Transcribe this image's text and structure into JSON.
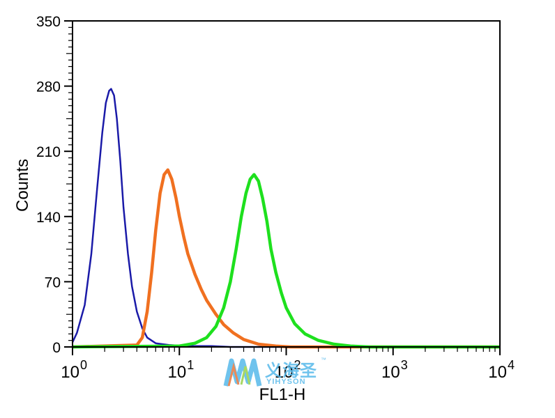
{
  "chart_data": {
    "type": "line",
    "title": "",
    "xlabel": "FL1-H",
    "ylabel": "Counts",
    "x_scale": "log",
    "xlim": [
      1,
      10000
    ],
    "ylim": [
      0,
      350
    ],
    "grid": false,
    "x_ticks": [
      {
        "base": "10",
        "exp": "0"
      },
      {
        "base": "10",
        "exp": "1"
      },
      {
        "base": "10",
        "exp": "2"
      },
      {
        "base": "10",
        "exp": "3"
      },
      {
        "base": "10",
        "exp": "4"
      }
    ],
    "y_ticks": [
      0,
      70,
      140,
      210,
      280,
      350
    ],
    "series": [
      {
        "color": "#1a1aa8",
        "x": [
          1,
          1.1,
          1.3,
          1.5,
          1.7,
          1.9,
          2.05,
          2.2,
          2.3,
          2.45,
          2.6,
          2.8,
          3.0,
          3.3,
          3.6,
          4.0,
          4.5,
          5.0,
          6.0,
          8.0,
          12,
          20,
          30,
          40,
          60,
          100,
          10000
        ],
        "y": [
          5,
          15,
          45,
          100,
          170,
          230,
          262,
          275,
          277,
          270,
          245,
          200,
          150,
          100,
          65,
          38,
          20,
          10,
          4,
          2,
          1,
          1,
          0,
          0,
          0,
          0,
          0
        ]
      },
      {
        "color": "#f07020",
        "x": [
          1,
          4,
          4.5,
          5.0,
          5.5,
          6.0,
          6.6,
          7.2,
          7.8,
          8.5,
          9.3,
          10,
          11,
          12,
          14,
          16,
          18,
          22,
          26,
          32,
          40,
          55,
          80,
          110,
          10000
        ],
        "y": [
          0,
          2,
          10,
          38,
          80,
          125,
          165,
          185,
          190,
          180,
          160,
          140,
          118,
          100,
          78,
          62,
          50,
          35,
          24,
          15,
          8,
          3,
          1,
          0,
          0
        ]
      },
      {
        "color": "#1ee01e",
        "x": [
          1,
          10,
          14,
          18,
          22,
          26,
          30,
          34,
          38,
          42,
          46,
          50,
          55,
          60,
          66,
          72,
          80,
          90,
          100,
          120,
          150,
          200,
          280,
          400,
          600,
          10000
        ],
        "y": [
          0,
          1,
          4,
          10,
          22,
          42,
          70,
          105,
          140,
          165,
          180,
          185,
          178,
          160,
          135,
          105,
          80,
          58,
          42,
          25,
          14,
          7,
          3,
          1,
          0,
          0
        ]
      }
    ]
  },
  "watermark": {
    "brand_cn": "义海圣",
    "brand_en": "YIHYSON",
    "tm": "™"
  }
}
